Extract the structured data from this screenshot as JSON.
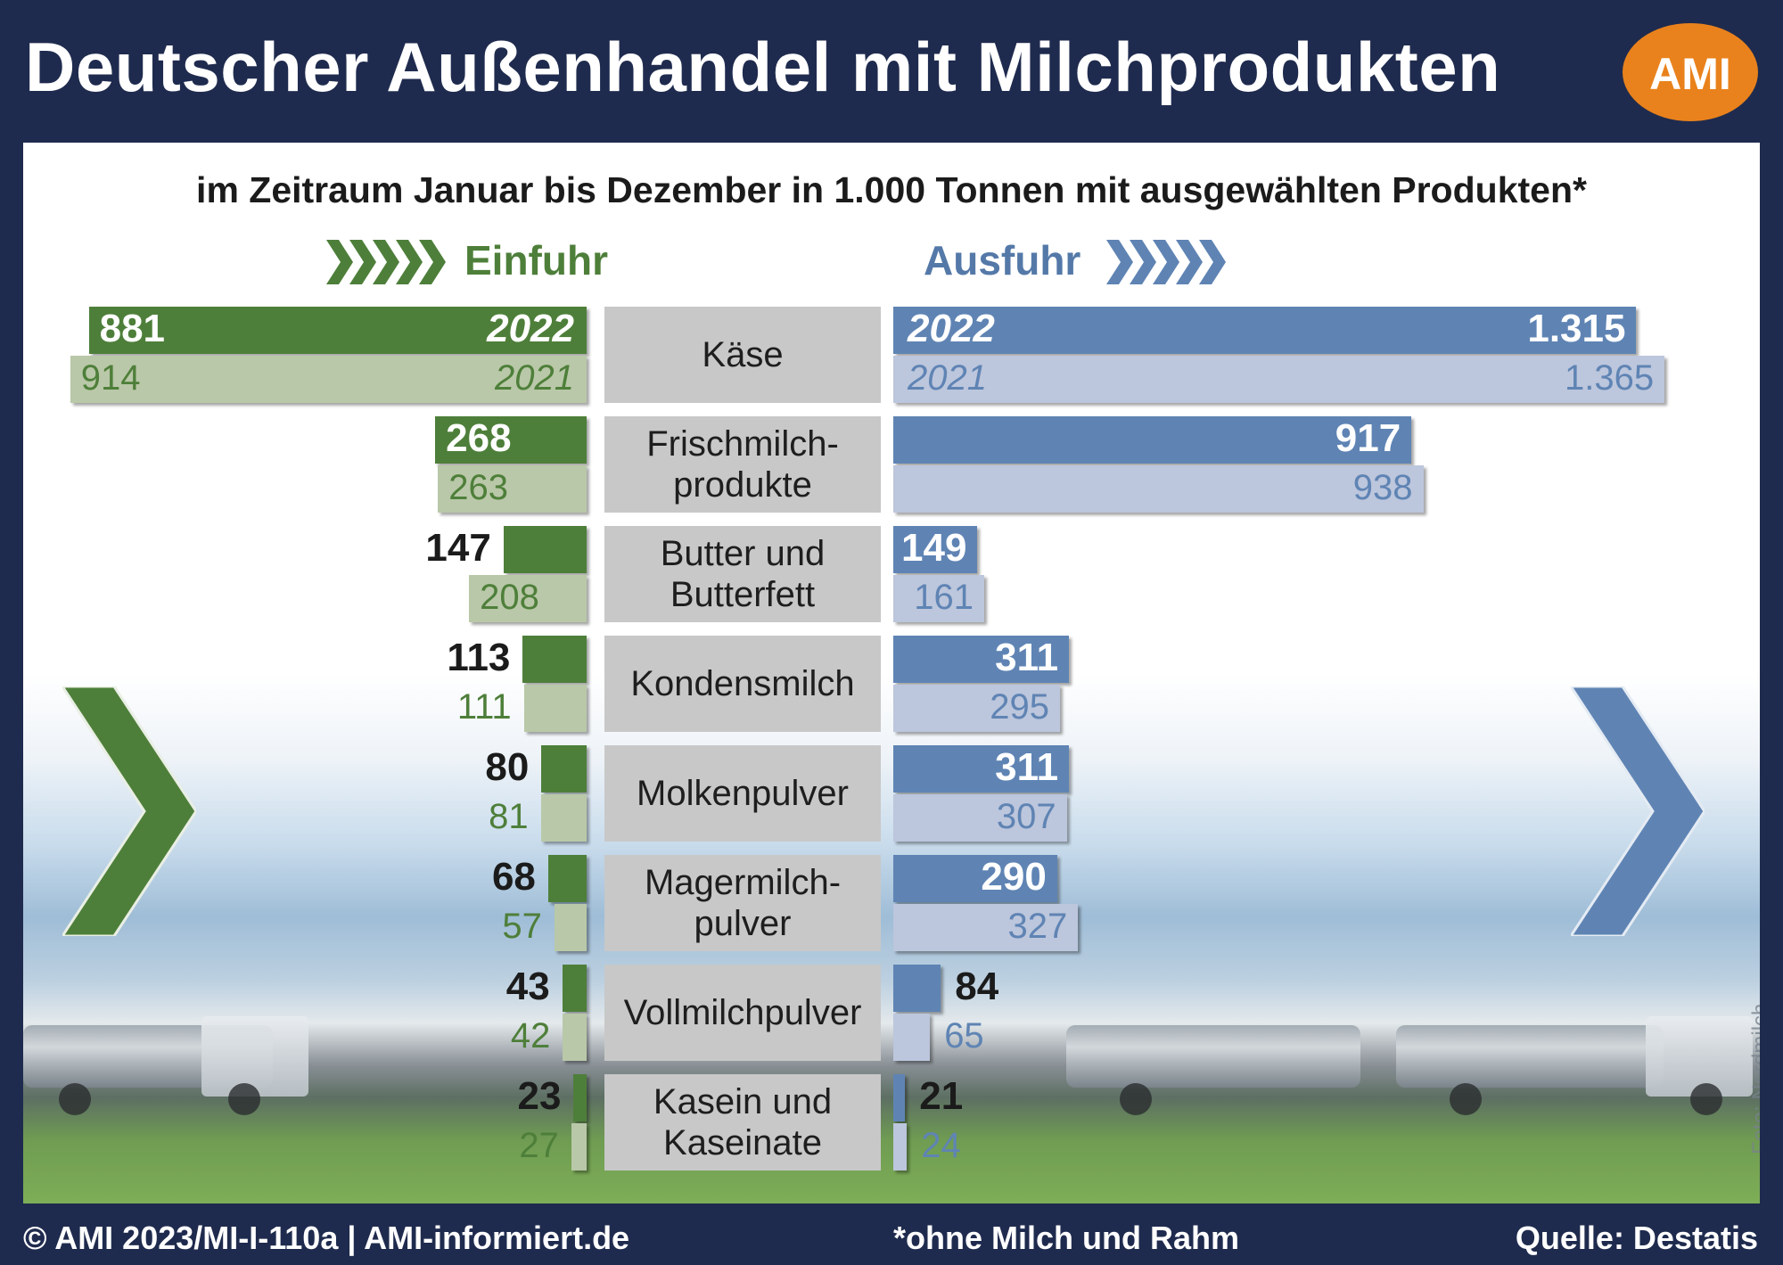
{
  "header": {
    "title": "Deutscher Außenhandel mit Milchprodukten",
    "logo_text": "AMI"
  },
  "subtitle": "im Zeitraum Januar bis Dezember in 1.000 Tonnen mit ausgewählten Produkten*",
  "legend": {
    "import_label": "Einfuhr",
    "export_label": "Ausfuhr"
  },
  "footer": {
    "copyright": "© AMI 2023/MI-I-110a | AMI-informiert.de",
    "note": "*ohne Milch und Rahm",
    "source": "Quelle: Destatis",
    "photo_credit": "Foto: Nordmilch"
  },
  "colors": {
    "import_2022": "#4e7f3a",
    "import_2021": "#b9c8a8",
    "export_2022": "#5f84b4",
    "export_2021": "#bcc6dc",
    "category_box": "#c8c8c8",
    "frame": "#1f2b4e",
    "logo": "#e9821c"
  },
  "chart_data": {
    "type": "bar",
    "orientation": "horizontal-butterfly",
    "unit": "1.000 Tonnen",
    "series_years": [
      "2022",
      "2021"
    ],
    "categories": [
      "Käse",
      "Frischmilch-\nprodukte",
      "Butter und\nButterfett",
      "Kondensmilch",
      "Molkenpulver",
      "Magermilch-\npulver",
      "Vollmilchpulver",
      "Kasein und\nKaseinate"
    ],
    "import_2022": [
      881,
      268,
      147,
      113,
      80,
      68,
      43,
      23
    ],
    "import_2021": [
      914,
      263,
      208,
      111,
      81,
      57,
      42,
      27
    ],
    "export_2022": [
      1315,
      917,
      149,
      311,
      311,
      290,
      84,
      21
    ],
    "export_2021": [
      1365,
      938,
      161,
      295,
      307,
      327,
      65,
      24
    ],
    "import_2022_labels": [
      "881",
      "268",
      "147",
      "113",
      "80",
      "68",
      "43",
      "23"
    ],
    "import_2021_labels": [
      "914",
      "263",
      "208",
      "111",
      "81",
      "57",
      "42",
      "27"
    ],
    "export_2022_labels": [
      "1.315",
      "917",
      "149",
      "311",
      "311",
      "290",
      "84",
      "21"
    ],
    "export_2021_labels": [
      "1.365",
      "938",
      "161",
      "295",
      "307",
      "327",
      "65",
      "24"
    ]
  }
}
